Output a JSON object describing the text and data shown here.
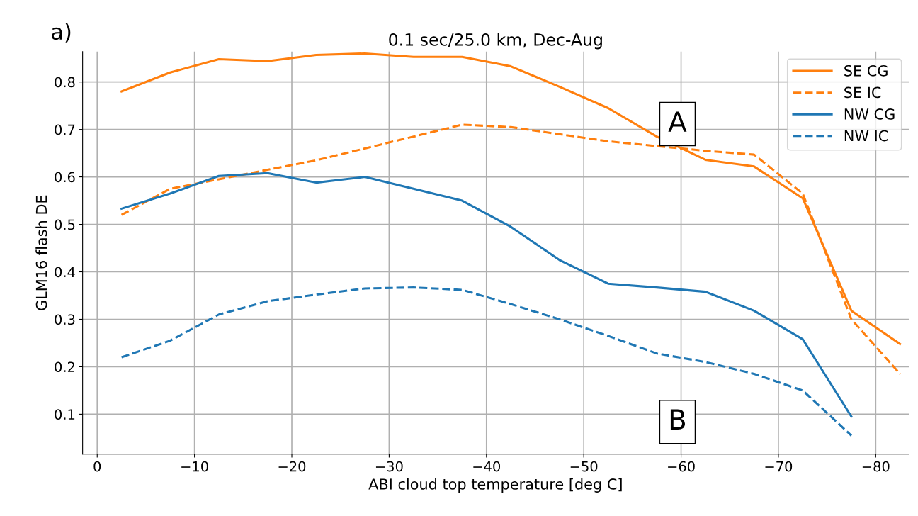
{
  "chart_data": {
    "type": "line",
    "title": "0.1 sec/25.0 km, Dec-Aug",
    "xlabel": "ABI cloud top temperature [deg C]",
    "ylabel": "GLM16 flash DE",
    "x": [
      -2.5,
      -7.5,
      -12.5,
      -17.5,
      -22.5,
      -27.5,
      -32.5,
      -37.5,
      -42.5,
      -47.5,
      -52.5,
      -57.5,
      -62.5,
      -67.5,
      -72.5,
      -77.5,
      -82.5
    ],
    "series": [
      {
        "name": "SE CG",
        "color": "#ff7f0e",
        "line_style": "solid",
        "values": [
          0.78,
          0.82,
          0.848,
          0.844,
          0.857,
          0.86,
          0.853,
          0.853,
          0.833,
          0.79,
          0.745,
          0.685,
          0.636,
          0.622,
          0.555,
          0.318,
          0.248
        ]
      },
      {
        "name": "SE IC",
        "color": "#ff7f0e",
        "line_style": "dashed",
        "values": [
          0.52,
          0.575,
          0.595,
          0.615,
          0.635,
          0.66,
          0.685,
          0.71,
          0.705,
          0.69,
          0.675,
          0.665,
          0.655,
          0.647,
          0.565,
          0.3,
          0.185
        ]
      },
      {
        "name": "NW CG",
        "color": "#1f77b4",
        "line_style": "solid",
        "values": [
          0.533,
          0.565,
          0.602,
          0.608,
          0.588,
          0.6,
          0.575,
          0.55,
          0.495,
          0.425,
          0.375,
          0.367,
          0.358,
          0.318,
          0.258,
          0.095,
          null
        ]
      },
      {
        "name": "NW IC",
        "color": "#1f77b4",
        "line_style": "dashed",
        "values": [
          0.22,
          0.255,
          0.31,
          0.338,
          0.352,
          0.365,
          0.367,
          0.362,
          0.332,
          0.3,
          0.265,
          0.228,
          0.21,
          0.185,
          0.15,
          0.055,
          null
        ]
      }
    ],
    "annotations": [
      "a)",
      "A",
      "B"
    ],
    "xlim": [
      1.5,
      -83.4
    ],
    "xticks": [
      {
        "value": 0,
        "label": "0"
      },
      {
        "value": -10,
        "label": "−10"
      },
      {
        "value": -20,
        "label": "−20"
      },
      {
        "value": -30,
        "label": "−30"
      },
      {
        "value": -40,
        "label": "−40"
      },
      {
        "value": -50,
        "label": "−50"
      },
      {
        "value": -60,
        "label": "−60"
      },
      {
        "value": -70,
        "label": "−70"
      },
      {
        "value": -80,
        "label": "−80"
      }
    ],
    "ylim": [
      0.016,
      0.864
    ],
    "yticks": [
      0.1,
      0.2,
      0.3,
      0.4,
      0.5,
      0.6,
      0.7,
      0.8
    ],
    "grid": true,
    "legend": "top right",
    "marker": "none"
  }
}
